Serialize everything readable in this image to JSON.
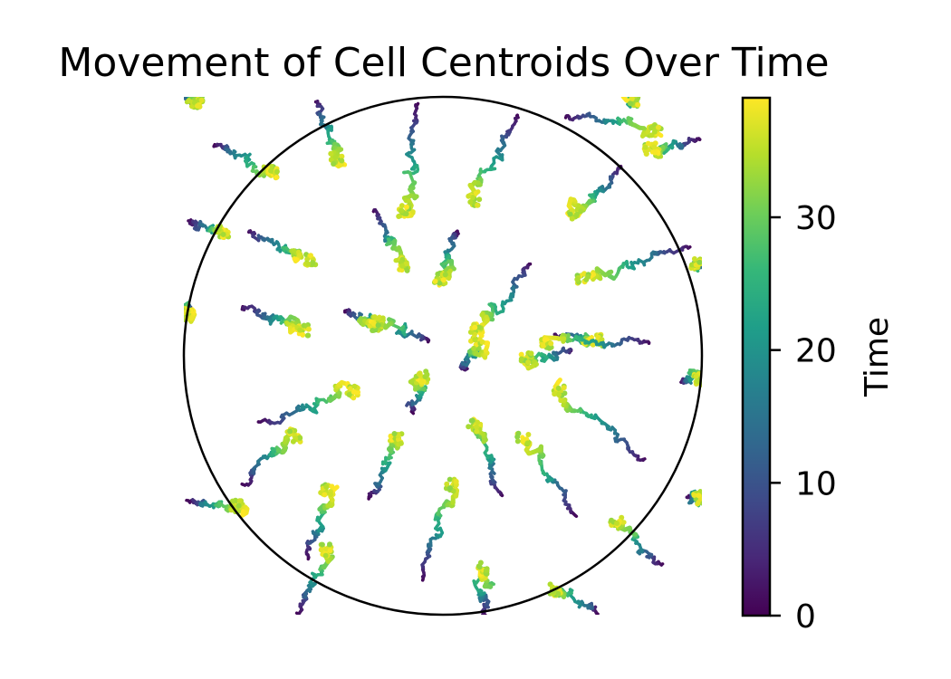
{
  "chart_data": {
    "type": "scatter",
    "title": "Movement of Cell Centroids Over Time",
    "xlabel": "",
    "ylabel": "",
    "xlim": [
      -1.0,
      1.0
    ],
    "ylim": [
      -1.0,
      1.0
    ],
    "grid": false,
    "axes_visible": false,
    "aspect": "equal",
    "boundary_circle": {
      "center": [
        0,
        0
      ],
      "radius": 1.0,
      "color": "#000000"
    },
    "colormap": "viridis",
    "colorbar": {
      "label": "Time",
      "range": [
        0,
        39
      ],
      "ticks": [
        0,
        10,
        20,
        30
      ],
      "tick_labels": [
        "0",
        "10",
        "20",
        "30"
      ],
      "placement": "right"
    },
    "time_range": [
      0,
      39
    ],
    "trajectories": [
      {
        "start": [
          -0.27,
          0.56
        ],
        "end": [
          -0.15,
          0.35
        ]
      },
      {
        "start": [
          0.05,
          0.48
        ],
        "end": [
          -0.01,
          0.3
        ]
      },
      {
        "start": [
          0.34,
          0.36
        ],
        "end": [
          0.13,
          0.1
        ]
      },
      {
        "start": [
          -0.38,
          0.17
        ],
        "end": [
          -0.25,
          0.12
        ]
      },
      {
        "start": [
          -0.05,
          0.06
        ],
        "end": [
          -0.25,
          0.13
        ]
      },
      {
        "start": [
          -0.12,
          -0.22
        ],
        "end": [
          -0.08,
          -0.08
        ]
      },
      {
        "start": [
          0.08,
          -0.05
        ],
        "end": [
          0.13,
          0.05
        ]
      },
      {
        "start": [
          0.5,
          0.02
        ],
        "end": [
          0.32,
          -0.01
        ]
      },
      {
        "start": [
          0.44,
          0.08
        ],
        "end": [
          0.6,
          0.06
        ]
      },
      {
        "start": [
          0.8,
          0.05
        ],
        "end": [
          0.4,
          0.05
        ]
      },
      {
        "start": [
          -0.77,
          -0.5
        ],
        "end": [
          -0.57,
          -0.31
        ]
      },
      {
        "start": [
          -0.71,
          -0.26
        ],
        "end": [
          -0.35,
          -0.14
        ]
      },
      {
        "start": [
          -0.29,
          -0.55
        ],
        "end": [
          -0.18,
          -0.32
        ]
      },
      {
        "start": [
          0.22,
          -0.54
        ],
        "end": [
          0.12,
          -0.27
        ]
      },
      {
        "start": [
          0.52,
          -0.62
        ],
        "end": [
          0.31,
          -0.32
        ]
      },
      {
        "start": [
          0.78,
          -0.4
        ],
        "end": [
          0.45,
          -0.14
        ]
      },
      {
        "start": [
          -0.08,
          -0.86
        ],
        "end": [
          0.03,
          -0.5
        ]
      },
      {
        "start": [
          -0.52,
          -0.78
        ],
        "end": [
          -0.45,
          -0.52
        ]
      },
      {
        "start": [
          -0.75,
          0.48
        ],
        "end": [
          -0.51,
          0.37
        ]
      },
      {
        "start": [
          -0.77,
          0.19
        ],
        "end": [
          -0.54,
          0.1
        ]
      },
      {
        "start": [
          -0.1,
          0.98
        ],
        "end": [
          -0.15,
          0.56
        ]
      },
      {
        "start": [
          0.29,
          0.93
        ],
        "end": [
          0.12,
          0.6
        ]
      },
      {
        "start": [
          -0.49,
          0.98
        ],
        "end": [
          -0.41,
          0.76
        ]
      },
      {
        "start": [
          -0.88,
          0.81
        ],
        "end": [
          -0.66,
          0.71
        ]
      },
      {
        "start": [
          0.69,
          0.73
        ],
        "end": [
          0.51,
          0.55
        ]
      },
      {
        "start": [
          0.96,
          0.42
        ],
        "end": [
          0.54,
          0.3
        ]
      },
      {
        "start": [
          -0.98,
          0.52
        ],
        "end": [
          -0.85,
          0.48
        ]
      },
      {
        "start": [
          0.85,
          -0.81
        ],
        "end": [
          0.67,
          -0.64
        ]
      },
      {
        "start": [
          -0.56,
          -1.0
        ],
        "end": [
          -0.45,
          -0.75
        ]
      },
      {
        "start": [
          0.17,
          -1.0
        ],
        "end": [
          0.15,
          -0.82
        ]
      },
      {
        "start": [
          0.6,
          -1.0
        ],
        "end": [
          0.43,
          -0.9
        ]
      },
      {
        "start": [
          -1.0,
          1.0
        ],
        "end": [
          -0.95,
          0.98
        ]
      },
      {
        "start": [
          0.99,
          0.84
        ],
        "end": [
          0.8,
          0.8
        ]
      },
      {
        "start": [
          0.99,
          0.36
        ],
        "end": [
          0.98,
          0.36
        ]
      },
      {
        "start": [
          -0.99,
          -0.56
        ],
        "end": [
          -0.8,
          -0.58
        ]
      },
      {
        "start": [
          0.96,
          -0.54
        ],
        "end": [
          0.99,
          -0.55
        ]
      },
      {
        "start": [
          0.92,
          -0.1
        ],
        "end": [
          0.99,
          -0.09
        ]
      },
      {
        "start": [
          -0.98,
          0.18
        ],
        "end": [
          -0.99,
          0.16
        ]
      },
      {
        "start": [
          0.75,
          1.0
        ],
        "end": [
          0.73,
          0.99
        ]
      },
      {
        "start": [
          0.48,
          0.92
        ],
        "end": [
          0.82,
          0.87
        ]
      }
    ]
  }
}
